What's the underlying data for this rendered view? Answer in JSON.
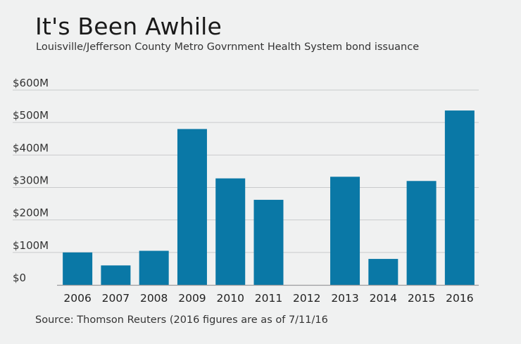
{
  "title": "It's Been Awhile",
  "subtitle": "Louisville/Jefferson County Metro Govrnment Health System bond issuance",
  "source": "Source: Thomson Reuters (2016 figures are as of 7/11/16",
  "colors": {
    "bar": "#0a78a6",
    "grid": "#c9cbcc",
    "axis": "#9a9c9e",
    "background": "#f0f1f1"
  },
  "chart_data": {
    "type": "bar",
    "title": "It's Been Awhile",
    "subtitle": "Louisville/Jefferson County Metro Govrnment Health System bond issuance",
    "xlabel": "",
    "ylabel": "",
    "categories": [
      "2006",
      "2007",
      "2008",
      "2009",
      "2010",
      "2011",
      "2012",
      "2013",
      "2014",
      "2015",
      "2016"
    ],
    "values": [
      100,
      60,
      105,
      480,
      328,
      262,
      0,
      333,
      80,
      320,
      537
    ],
    "units": "millions of dollars",
    "ylim": [
      0,
      600
    ],
    "yticks": [
      0,
      100,
      200,
      300,
      400,
      500,
      600
    ],
    "ytick_labels": [
      "$0",
      "$100M",
      "$200M",
      "$300M",
      "$400M",
      "$500M",
      "$600M"
    ],
    "grid": true,
    "legend": "none"
  }
}
